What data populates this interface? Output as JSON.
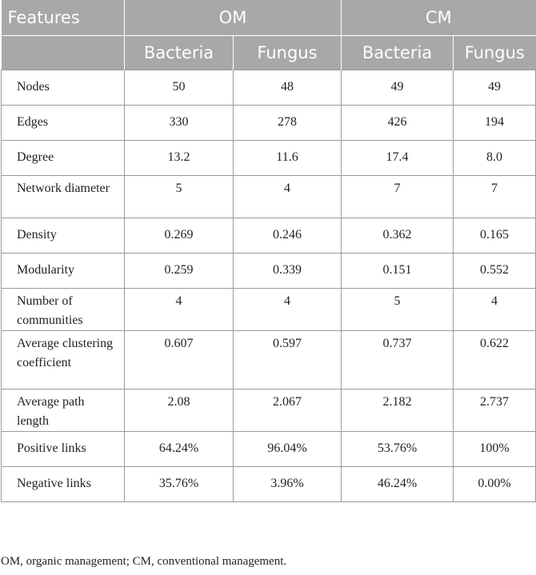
{
  "table": {
    "header": {
      "features_label": "Features",
      "groups": [
        "OM",
        "CM"
      ],
      "subgroups": [
        "Bacteria",
        "Fungus",
        "Bacteria",
        "Fungus"
      ]
    },
    "rows": [
      {
        "feature": "Nodes",
        "values": [
          "50",
          "48",
          "49",
          "49"
        ]
      },
      {
        "feature": "Edges",
        "values": [
          "330",
          "278",
          "426",
          "194"
        ]
      },
      {
        "feature": "Degree",
        "values": [
          "13.2",
          "11.6",
          "17.4",
          "8.0"
        ]
      },
      {
        "feature": "Network diameter",
        "values": [
          "5",
          "4",
          "7",
          "7"
        ]
      },
      {
        "feature": "Density",
        "values": [
          "0.269",
          "0.246",
          "0.362",
          "0.165"
        ]
      },
      {
        "feature": "Modularity",
        "values": [
          "0.259",
          "0.339",
          "0.151",
          "0.552"
        ]
      },
      {
        "feature": "Number of communities",
        "values": [
          "4",
          "4",
          "5",
          "4"
        ]
      },
      {
        "feature": "Average clustering coefficient",
        "values": [
          "0.607",
          "0.597",
          "0.737",
          "0.622"
        ]
      },
      {
        "feature": "Average path length",
        "values": [
          "2.08",
          "2.067",
          "2.182",
          "2.737"
        ]
      },
      {
        "feature": "Positive links",
        "values": [
          "64.24%",
          "96.04%",
          "53.76%",
          "100%"
        ]
      },
      {
        "feature": "Negative links",
        "values": [
          "35.76%",
          "3.96%",
          "46.24%",
          "0.00%"
        ]
      }
    ]
  },
  "footnote": "OM, organic management; CM, conventional management."
}
